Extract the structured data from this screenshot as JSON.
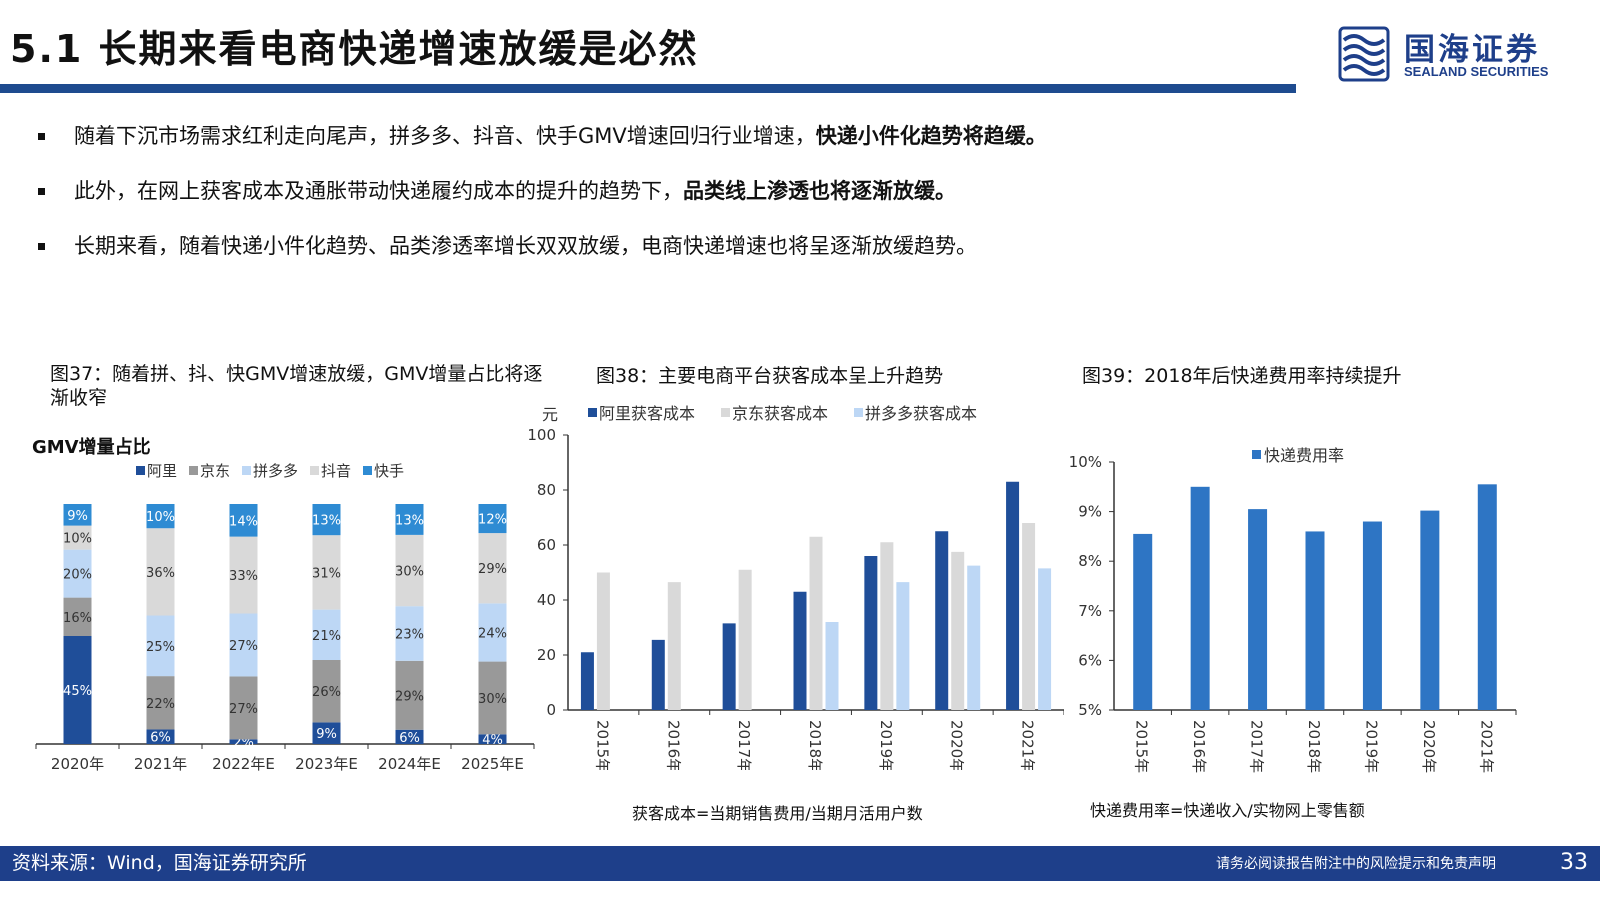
{
  "header": {
    "title": "5.1 长期来看电商快递增速放缓是必然",
    "logo_cn": "国海证券",
    "logo_en": "SEALAND SECURITIES"
  },
  "bullets": [
    {
      "text": "随着下沉市场需求红利走向尾声，拼多多、抖音、快手GMV增速回归行业增速，",
      "bold": "快递小件化趋势将趋缓。"
    },
    {
      "text": "此外，在网上获客成本及通胀带动快递履约成本的提升的趋势下，",
      "bold": "品类线上渗透也将逐渐放缓。"
    },
    {
      "text": "长期来看，随着快递小件化趋势、品类渗透率增长双双放缓，电商快递增速也将呈逐渐放缓趋势。",
      "bold": ""
    }
  ],
  "figures": {
    "fig37_title": "图37：随着拼、抖、快GMV增速放缓，GMV增量占比将逐渐收窄",
    "fig38_title": "图38：主要电商平台获客成本呈上升趋势",
    "fig39_title": "图39：2018年后快递费用率持续提升",
    "fig38_note": "获客成本=当期销售费用/当期月活用户数",
    "fig39_note": "快递费用率=快递收入/实物网上零售额"
  },
  "chart_data": [
    {
      "type": "bar",
      "stacked": true,
      "title": "GMV增量占比",
      "categories": [
        "2020年",
        "2021年",
        "2022年E",
        "2023年E",
        "2024年E",
        "2025年E"
      ],
      "series": [
        {
          "name": "阿里",
          "color": "#1f4e99",
          "values": [
            45,
            6,
            2,
            9,
            6,
            4
          ]
        },
        {
          "name": "京东",
          "color": "#999999",
          "values": [
            16,
            22,
            27,
            26,
            29,
            30
          ]
        },
        {
          "name": "拼多多",
          "color": "#bdd7f5",
          "values": [
            20,
            25,
            27,
            21,
            23,
            24
          ]
        },
        {
          "name": "抖音",
          "color": "#d9d9d9",
          "values": [
            10,
            36,
            33,
            31,
            30,
            29
          ]
        },
        {
          "name": "快手",
          "color": "#2e8bd3",
          "values": [
            9,
            10,
            14,
            13,
            13,
            12
          ]
        }
      ],
      "legend": "top",
      "ylim": [
        0,
        100
      ]
    },
    {
      "type": "bar",
      "ylabel": "元",
      "categories": [
        "2015年",
        "2016年",
        "2017年",
        "2018年",
        "2019年",
        "2020年",
        "2021年"
      ],
      "series": [
        {
          "name": "阿里获客成本",
          "color": "#1f4e99",
          "values": [
            21,
            25.5,
            31.5,
            43,
            56,
            65,
            83
          ]
        },
        {
          "name": "京东获客成本",
          "color": "#d9d9d9",
          "values": [
            50,
            46.5,
            51,
            63,
            61,
            57.5,
            68
          ]
        },
        {
          "name": "拼多多获客成本",
          "color": "#bdd7f5",
          "values": [
            null,
            null,
            null,
            32,
            46.5,
            52.5,
            51.5
          ]
        }
      ],
      "yticks": [
        0,
        20,
        40,
        60,
        80,
        100
      ],
      "ylim": [
        0,
        100
      ],
      "legend": "top"
    },
    {
      "type": "bar",
      "categories": [
        "2015年",
        "2016年",
        "2017年",
        "2018年",
        "2019年",
        "2020年",
        "2021年"
      ],
      "series": [
        {
          "name": "快递费用率",
          "color": "#2e75c4",
          "values": [
            8.55,
            9.5,
            9.05,
            8.6,
            8.8,
            9.02,
            9.55
          ]
        }
      ],
      "yticks": [
        "5%",
        "6%",
        "7%",
        "8%",
        "9%",
        "10%"
      ],
      "ylim": [
        5,
        10
      ],
      "legend": "top-right"
    }
  ],
  "footer": {
    "source": "资料来源：Wind，国海证券研究所",
    "disclaimer": "请务必阅读报告附注中的风险提示和免责声明",
    "page": "33"
  }
}
